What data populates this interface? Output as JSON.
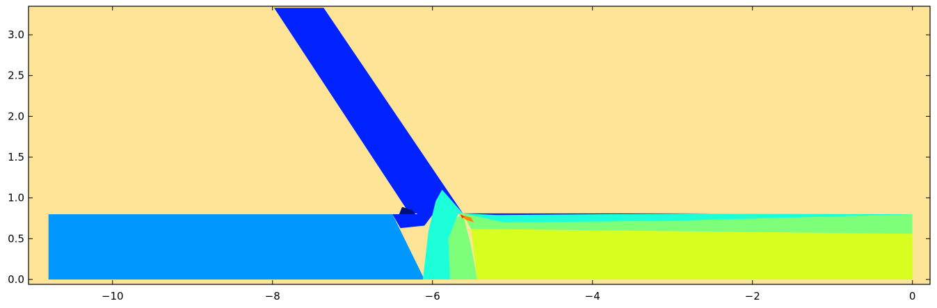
{
  "chart_data": {
    "type": "heatmap",
    "title": "",
    "xlabel": "",
    "ylabel": "",
    "xlim": [
      -11.05,
      0.22
    ],
    "ylim": [
      -0.06,
      3.35
    ],
    "x_ticks": [
      -10,
      -8,
      -6,
      -4,
      -2,
      0
    ],
    "x_tick_labels": [
      "−10",
      "−8",
      "−6",
      "−4",
      "−2",
      "0"
    ],
    "y_ticks": [
      0.0,
      0.5,
      1.0,
      1.5,
      2.0,
      2.5,
      3.0
    ],
    "y_tick_labels": [
      "0.0",
      "0.5",
      "1.0",
      "1.5",
      "2.0",
      "2.5",
      "3.0"
    ],
    "grid": false,
    "legend": "none",
    "colors": {
      "background": "#fee497",
      "dark_navy": "#000e7d",
      "blue": "#0022ff",
      "mid_blue": "#0098ff",
      "cyan": "#1dffd9",
      "green": "#7dff7a",
      "yellow_green": "#d7ff20",
      "orange": "#ff8a00",
      "red": "#ff2800"
    },
    "regions": [
      {
        "name": "inclined channel",
        "color": "blue",
        "points": [
          [
            -7.98,
            3.33
          ],
          [
            -7.36,
            3.33
          ],
          [
            -5.62,
            0.81
          ],
          [
            -6.29,
            0.81
          ]
        ]
      },
      {
        "name": "horizontal channel left",
        "color": "mid_blue",
        "points": [
          [
            -10.8,
            0.0
          ],
          [
            -10.8,
            0.8
          ],
          [
            -6.5,
            0.8
          ],
          [
            -6.1,
            0.0
          ]
        ]
      },
      {
        "name": "vortex spot",
        "color": "dark_navy",
        "points": [
          [
            -6.38,
            0.89
          ],
          [
            -6.25,
            0.85
          ],
          [
            -6.2,
            0.78
          ],
          [
            -6.3,
            0.75
          ],
          [
            -6.42,
            0.79
          ]
        ]
      },
      {
        "name": "junction low zone",
        "color": "blue",
        "points": [
          [
            -6.5,
            0.8
          ],
          [
            -6.2,
            0.8
          ],
          [
            -5.96,
            0.99
          ],
          [
            -5.85,
            0.99
          ],
          [
            -6.1,
            0.66
          ],
          [
            -6.4,
            0.63
          ]
        ]
      },
      {
        "name": "cyan wedge",
        "color": "cyan",
        "points": [
          [
            -6.12,
            0.0
          ],
          [
            -5.78,
            0.0
          ],
          [
            -5.8,
            0.5
          ],
          [
            -5.68,
            0.8
          ],
          [
            -5.62,
            0.81
          ],
          [
            -5.88,
            1.1
          ],
          [
            -5.96,
            0.96
          ],
          [
            -6.05,
            0.6
          ]
        ]
      },
      {
        "name": "green wedge",
        "color": "green",
        "points": [
          [
            -5.78,
            0.0
          ],
          [
            -5.44,
            0.0
          ],
          [
            -5.52,
            0.42
          ],
          [
            -5.62,
            0.81
          ],
          [
            -5.7,
            0.75
          ],
          [
            -5.8,
            0.5
          ]
        ]
      },
      {
        "name": "horizontal channel right",
        "color": "yellow_green",
        "points": [
          [
            -5.44,
            0.0
          ],
          [
            0.0,
            0.0
          ],
          [
            0.0,
            0.56
          ],
          [
            -5.52,
            0.62
          ]
        ]
      },
      {
        "name": "green upper band",
        "color": "green",
        "points": [
          [
            -5.52,
            0.62
          ],
          [
            0.0,
            0.56
          ],
          [
            0.0,
            0.8
          ],
          [
            -5.62,
            0.81
          ]
        ]
      },
      {
        "name": "cyan boundary layer",
        "color": "cyan",
        "points": [
          [
            -5.62,
            0.81
          ],
          [
            0.0,
            0.8
          ],
          [
            -3.0,
            0.72
          ],
          [
            -5.1,
            0.7
          ]
        ]
      },
      {
        "name": "wall blue film",
        "color": "blue",
        "points": [
          [
            -5.62,
            0.81
          ],
          [
            -2.5,
            0.81
          ],
          [
            -5.2,
            0.79
          ]
        ]
      },
      {
        "name": "hot spot",
        "color": "orange",
        "points": [
          [
            -5.67,
            0.8
          ],
          [
            -5.58,
            0.73
          ],
          [
            -5.48,
            0.7
          ],
          [
            -5.52,
            0.76
          ]
        ]
      },
      {
        "name": "peak",
        "color": "red",
        "points": [
          [
            -5.65,
            0.8
          ],
          [
            -5.6,
            0.77
          ],
          [
            -5.63,
            0.75
          ]
        ]
      }
    ]
  }
}
